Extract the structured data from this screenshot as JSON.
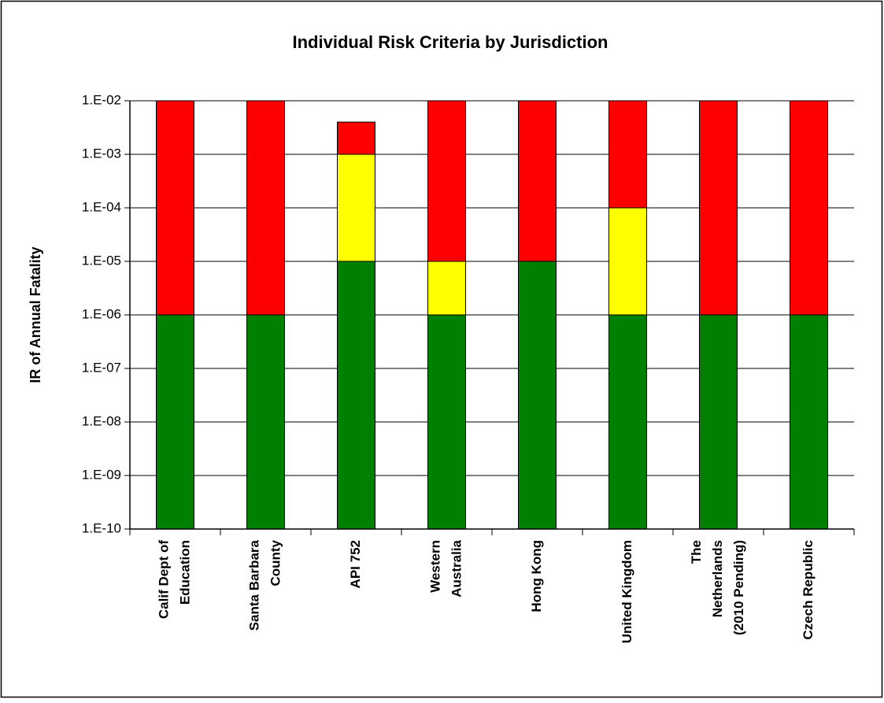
{
  "chart_data": {
    "type": "range-bar",
    "title": "Individual Risk Criteria by Jurisdiction",
    "y_label": "IR of Annual Fatality",
    "log_scale": true,
    "grid": true,
    "categories": [
      [
        "Calif Dept of",
        "Education"
      ],
      [
        "Santa Barbara",
        "County"
      ],
      [
        "API 752"
      ],
      [
        "Western",
        "Australia"
      ],
      [
        "Hong Kong"
      ],
      [
        "United Kingdom"
      ],
      [
        "The",
        "Netherlands",
        "(2010 Pending)"
      ],
      [
        "Czech Republic"
      ]
    ],
    "series": [
      {
        "color": "#008000",
        "values": [
          [
            1e-10,
            1e-06
          ],
          [
            1e-10,
            1e-06
          ],
          [
            1e-10,
            1e-05
          ],
          [
            1e-10,
            1e-06
          ],
          [
            1e-10,
            1e-05
          ],
          [
            1e-10,
            1e-06
          ],
          [
            1e-10,
            1e-06
          ],
          [
            1e-10,
            1e-06
          ]
        ]
      },
      {
        "color": "#ffff00",
        "values": [
          null,
          null,
          [
            1e-05,
            0.001
          ],
          [
            1e-06,
            1e-05
          ],
          null,
          [
            1e-06,
            0.0001
          ],
          null,
          null
        ]
      },
      {
        "color": "#ff0000",
        "values": [
          [
            1e-06,
            0.01
          ],
          [
            1e-06,
            0.01
          ],
          [
            0.001,
            0.004
          ],
          [
            1e-05,
            0.01
          ],
          [
            1e-05,
            0.01
          ],
          [
            0.0001,
            0.01
          ],
          [
            1e-06,
            0.01
          ],
          [
            1e-06,
            0.01
          ]
        ]
      }
    ],
    "ylim": [
      1e-10,
      0.01
    ],
    "yticks": [
      {
        "value": 1e-10,
        "label": "1.E-10"
      },
      {
        "value": 1e-09,
        "label": "1.E-09"
      },
      {
        "value": 1e-08,
        "label": "1.E-08"
      },
      {
        "value": 1e-07,
        "label": "1.E-07"
      },
      {
        "value": 1e-06,
        "label": "1.E-06"
      },
      {
        "value": 1e-05,
        "label": "1.E-05"
      },
      {
        "value": 0.0001,
        "label": "1.E-04"
      },
      {
        "value": 0.001,
        "label": "1.E-03"
      },
      {
        "value": 0.01,
        "label": "1.E-02"
      }
    ]
  }
}
